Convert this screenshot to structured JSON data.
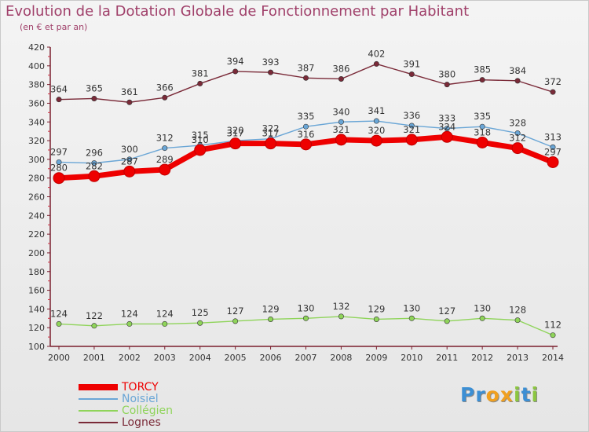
{
  "chart_data": {
    "type": "line",
    "title": "Evolution de la Dotation Globale de Fonctionnement par Habitant",
    "subtitle": "(en € et par an)",
    "xlabel": "",
    "ylabel": "",
    "x": [
      "2000",
      "2001",
      "2002",
      "2003",
      "2004",
      "2005",
      "2006",
      "2007",
      "2008",
      "2009",
      "2010",
      "2011",
      "2012",
      "2013",
      "2014"
    ],
    "ylim": [
      100,
      420
    ],
    "yticks": [
      100,
      120,
      140,
      160,
      180,
      200,
      220,
      240,
      260,
      280,
      300,
      320,
      340,
      360,
      380,
      400,
      420
    ],
    "grid": false,
    "legend_position": "bottom-left",
    "series": [
      {
        "name": "TORCY",
        "color": "#ee0000",
        "values": [
          280,
          282,
          287,
          289,
          310,
          317,
          317,
          316,
          321,
          320,
          321,
          324,
          318,
          312,
          297
        ]
      },
      {
        "name": "Noisiel",
        "color": "#6aa6d6",
        "values": [
          297,
          296,
          300,
          312,
          315,
          320,
          322,
          335,
          340,
          341,
          336,
          333,
          335,
          328,
          313
        ]
      },
      {
        "name": "Collégien",
        "color": "#8fd45a",
        "values": [
          124,
          122,
          124,
          124,
          125,
          127,
          129,
          130,
          132,
          129,
          130,
          127,
          130,
          128,
          112
        ]
      },
      {
        "name": "Lognes",
        "color": "#7a2a38",
        "values": [
          364,
          365,
          361,
          366,
          381,
          394,
          393,
          387,
          386,
          402,
          391,
          380,
          385,
          384,
          372
        ]
      }
    ]
  },
  "logo": {
    "letters": [
      "P",
      "r",
      "o",
      "x",
      "i",
      "t",
      "i"
    ],
    "colors": [
      "#3c8fd4",
      "#3c8fd4",
      "#f0a020",
      "#f0a020",
      "#8cc640",
      "#3c8fd4",
      "#8cc640"
    ]
  }
}
